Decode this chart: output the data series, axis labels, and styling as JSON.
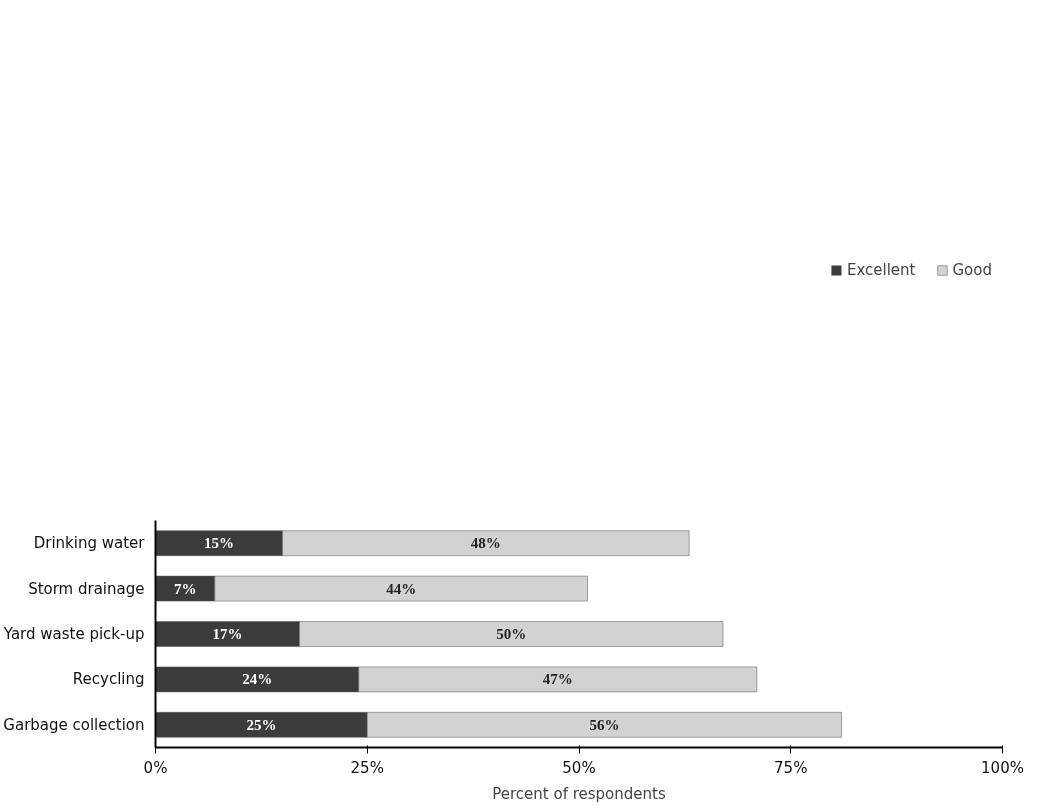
{
  "chart_data": {
    "type": "bar",
    "orientation": "horizontal",
    "stacked": true,
    "categories": [
      "Drinking water",
      "Storm drainage",
      "Yard waste pick-up",
      "Recycling",
      "Garbage collection"
    ],
    "series": [
      {
        "name": "Excellent",
        "color": "#3c3c3c",
        "values": [
          15,
          7,
          17,
          24,
          25
        ],
        "value_labels": [
          "15%",
          "7%",
          "17%",
          "24%",
          "25%"
        ]
      },
      {
        "name": "Good",
        "color": "#d2d2d2",
        "values": [
          48,
          44,
          50,
          47,
          56
        ],
        "value_labels": [
          "48%",
          "44%",
          "50%",
          "47%",
          "56%"
        ]
      }
    ],
    "xlabel": "Percent of respondents",
    "xlim": [
      0,
      100
    ],
    "xticks": [
      {
        "value": 0,
        "label": "0%"
      },
      {
        "value": 25,
        "label": "25%"
      },
      {
        "value": 50,
        "label": "50%"
      },
      {
        "value": 75,
        "label": "75%"
      },
      {
        "value": 100,
        "label": "100%"
      }
    ],
    "grid": false,
    "legend": "top right"
  }
}
